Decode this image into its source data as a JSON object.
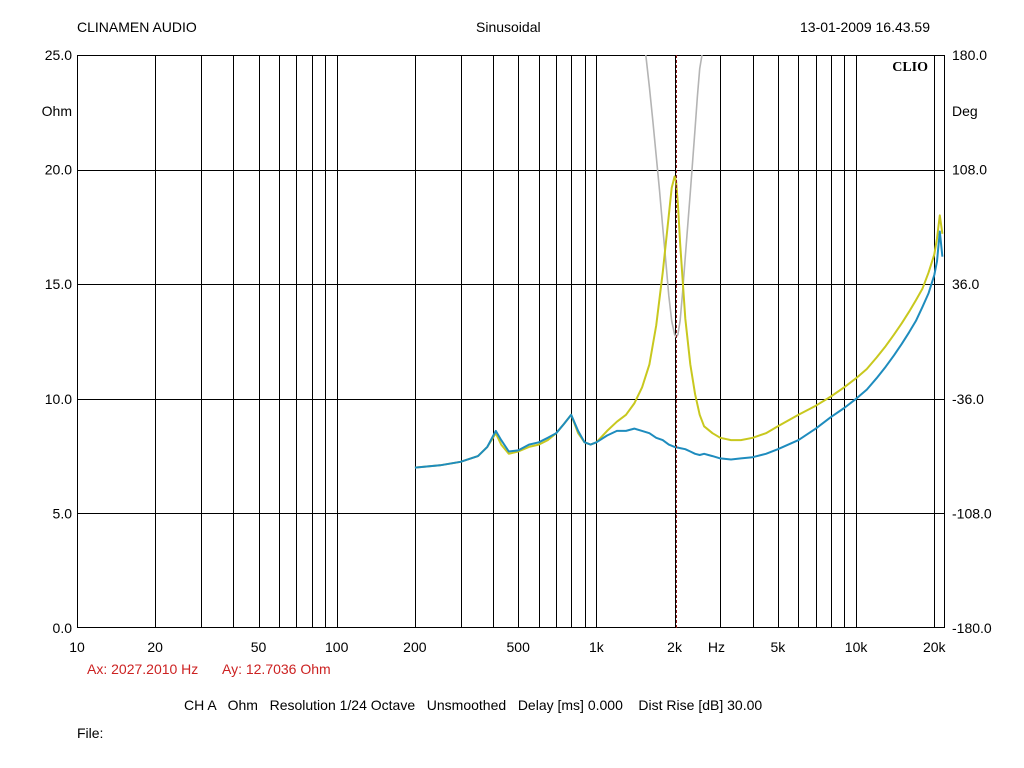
{
  "header": {
    "company": "CLINAMEN AUDIO",
    "mode": "Sinusoidal",
    "datetime": "13-01-2009 16.43.59"
  },
  "logo_text": "CLIO",
  "cursor_readout": {
    "ax": "Ax: 2027.2010 Hz",
    "ay": "Ay: 12.7036 Ohm"
  },
  "footer": {
    "status_line": "CH A   Ohm   Resolution 1/24 Octave   Unsmoothed   Delay [ms] 0.000    Dist Rise [dB] 30.00",
    "file_label": "File:"
  },
  "colors": {
    "background": "#ffffff",
    "grid": "#000000",
    "series_yellow": "#c8c81e",
    "series_blue": "#1e8cbe",
    "series_gray": "#b4b4b4",
    "cursor": "#8b1a1a",
    "readout": "#cc2222"
  },
  "chart_data": {
    "type": "line",
    "x_scale": "log",
    "xlim": [
      10,
      22000
    ],
    "ylim": [
      0,
      25
    ],
    "y2lim": [
      -180,
      180
    ],
    "grid": true,
    "xlabel": "Hz",
    "ylabel": "Ohm",
    "y2label": "Deg",
    "x_ticks": [
      {
        "value": 10,
        "label": "10"
      },
      {
        "value": 20,
        "label": "20"
      },
      {
        "value": 50,
        "label": "50"
      },
      {
        "value": 100,
        "label": "100"
      },
      {
        "value": 200,
        "label": "200"
      },
      {
        "value": 500,
        "label": "500"
      },
      {
        "value": 1000,
        "label": "1k"
      },
      {
        "value": 2000,
        "label": "2k"
      },
      {
        "value": 5000,
        "label": "5k"
      },
      {
        "value": 10000,
        "label": "10k"
      },
      {
        "value": 20000,
        "label": "20k"
      }
    ],
    "y_ticks": [
      "0.0",
      "5.0",
      "10.0",
      "15.0",
      "20.0",
      "25.0"
    ],
    "y2_ticks": [
      "-180.0",
      "-108.0",
      "-36.0",
      "36.0",
      "108.0",
      "180.0"
    ],
    "cursor_x": 2027.2,
    "series": [
      {
        "color": "yellow",
        "axis": "left",
        "x": [
          200,
          250,
          300,
          350,
          380,
          410,
          430,
          460,
          500,
          550,
          600,
          650,
          700,
          750,
          800,
          850,
          900,
          950,
          1000,
          1100,
          1200,
          1300,
          1400,
          1500,
          1600,
          1700,
          1800,
          1900,
          1950,
          2000,
          2027,
          2060,
          2100,
          2200,
          2300,
          2400,
          2500,
          2600,
          2800,
          3000,
          3300,
          3600,
          4000,
          4500,
          5000,
          6000,
          7000,
          8000,
          9000,
          10000,
          11000,
          12000,
          13000,
          14000,
          15000,
          16000,
          17000,
          18000,
          19000,
          20000,
          20500,
          21000,
          21500
        ],
        "y": [
          7.0,
          7.1,
          7.25,
          7.5,
          7.9,
          8.5,
          8.0,
          7.6,
          7.7,
          7.9,
          8.0,
          8.2,
          8.5,
          8.9,
          9.3,
          8.5,
          8.1,
          8.0,
          8.1,
          8.6,
          9.0,
          9.3,
          9.8,
          10.5,
          11.5,
          13.2,
          15.5,
          18.0,
          19.2,
          19.7,
          19.5,
          18.5,
          16.8,
          13.5,
          11.5,
          10.2,
          9.3,
          8.8,
          8.5,
          8.3,
          8.2,
          8.2,
          8.3,
          8.5,
          8.8,
          9.3,
          9.7,
          10.1,
          10.5,
          10.9,
          11.3,
          11.8,
          12.3,
          12.8,
          13.3,
          13.8,
          14.3,
          14.8,
          15.5,
          16.3,
          17.0,
          18.0,
          17.2
        ]
      },
      {
        "color": "blue",
        "axis": "left",
        "x": [
          200,
          250,
          300,
          350,
          380,
          410,
          430,
          460,
          500,
          550,
          600,
          650,
          700,
          750,
          800,
          850,
          900,
          950,
          1000,
          1100,
          1200,
          1300,
          1400,
          1500,
          1600,
          1700,
          1800,
          1900,
          2000,
          2100,
          2200,
          2300,
          2400,
          2500,
          2600,
          2700,
          2800,
          3000,
          3300,
          3600,
          4000,
          4500,
          5000,
          6000,
          7000,
          8000,
          9000,
          10000,
          11000,
          12000,
          13000,
          14000,
          15000,
          16000,
          17000,
          18000,
          19000,
          20000,
          20500,
          21000,
          21500
        ],
        "y": [
          7.0,
          7.1,
          7.25,
          7.5,
          7.9,
          8.6,
          8.2,
          7.7,
          7.75,
          8.0,
          8.1,
          8.3,
          8.5,
          8.9,
          9.3,
          8.6,
          8.1,
          8.0,
          8.1,
          8.4,
          8.6,
          8.6,
          8.7,
          8.6,
          8.5,
          8.3,
          8.2,
          8.0,
          7.9,
          7.85,
          7.8,
          7.7,
          7.6,
          7.55,
          7.6,
          7.55,
          7.5,
          7.4,
          7.35,
          7.4,
          7.45,
          7.6,
          7.8,
          8.2,
          8.7,
          9.2,
          9.6,
          10.0,
          10.4,
          10.9,
          11.4,
          11.9,
          12.4,
          12.9,
          13.4,
          14.0,
          14.6,
          15.4,
          16.0,
          17.3,
          16.2
        ]
      },
      {
        "color": "gray",
        "axis": "left",
        "x": [
          1550,
          1600,
          1650,
          1700,
          1750,
          1800,
          1850,
          1900,
          1950,
          2000,
          2027,
          2060,
          2100,
          2150,
          2200,
          2250,
          2300,
          2350,
          2400,
          2450,
          2500,
          2550
        ],
        "y": [
          25.0,
          23.6,
          22.1,
          20.6,
          19.1,
          17.5,
          16.0,
          14.5,
          13.4,
          12.8,
          12.7,
          12.8,
          13.4,
          14.7,
          16.2,
          17.6,
          19.0,
          20.4,
          21.8,
          23.2,
          24.4,
          25.0
        ]
      }
    ]
  }
}
